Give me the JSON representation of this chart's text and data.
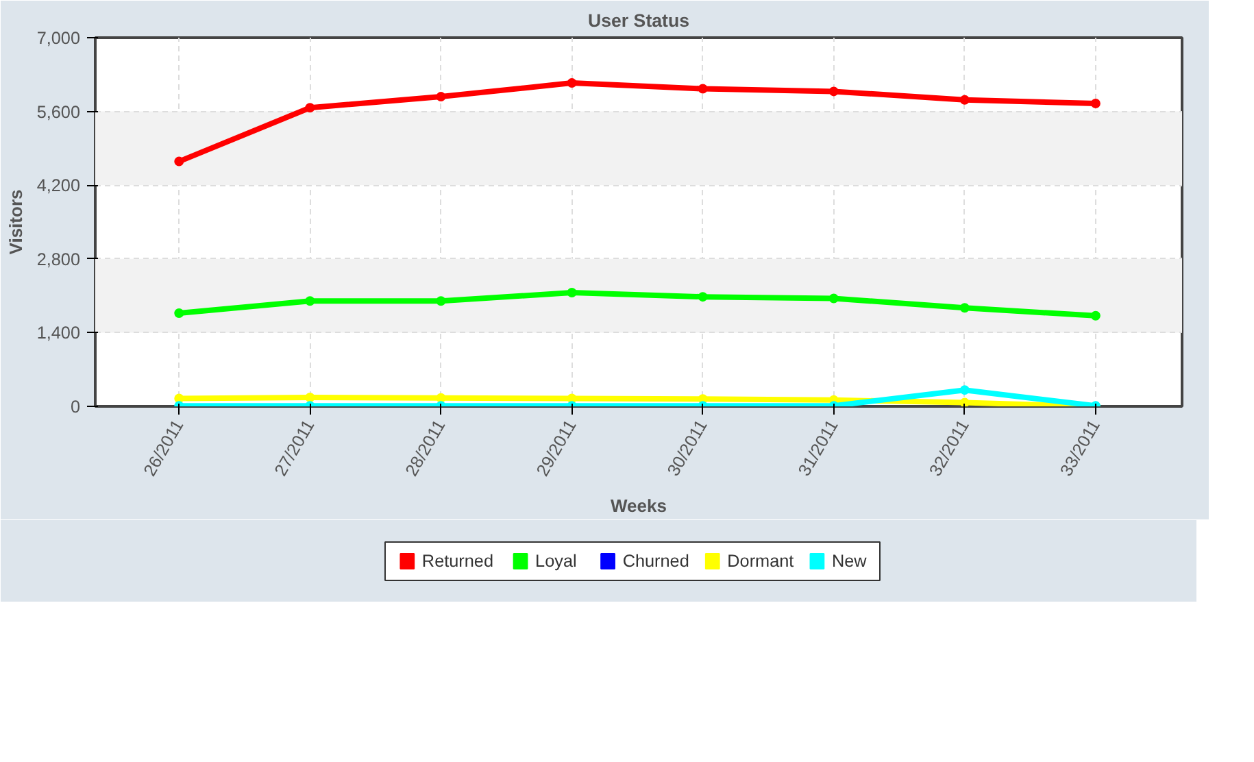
{
  "chart_data": {
    "type": "line",
    "title": "User Status",
    "xlabel": "Weeks",
    "ylabel": "Visitors",
    "categories": [
      "26/2011",
      "27/2011",
      "28/2011",
      "29/2011",
      "30/2011",
      "31/2011",
      "32/2011",
      "33/2011"
    ],
    "series": [
      {
        "name": "Returned",
        "color": "#ff0000",
        "values": [
          4650,
          5670,
          5880,
          6140,
          6030,
          5980,
          5820,
          5750
        ]
      },
      {
        "name": "Loyal",
        "color": "#00ff00",
        "values": [
          1770,
          2000,
          2000,
          2160,
          2080,
          2050,
          1870,
          1720
        ]
      },
      {
        "name": "Churned",
        "color": "#0000ff",
        "values": [
          null,
          null,
          null,
          null,
          null,
          null,
          null,
          null
        ]
      },
      {
        "name": "Dormant",
        "color": "#ffff00",
        "values": [
          150,
          170,
          160,
          150,
          140,
          120,
          70,
          0
        ]
      },
      {
        "name": "New",
        "color": "#00ffff",
        "values": [
          10,
          10,
          10,
          10,
          10,
          10,
          310,
          10
        ]
      }
    ],
    "ylim": [
      0,
      7000
    ],
    "yticks": [
      {
        "value": 0,
        "label": "0"
      },
      {
        "value": 1400,
        "label": "1,400"
      },
      {
        "value": 2800,
        "label": "2,800"
      },
      {
        "value": 4200,
        "label": "4,200"
      },
      {
        "value": 5600,
        "label": "5,600"
      },
      {
        "value": 7000,
        "label": "7,000"
      }
    ],
    "grid": true,
    "legend": "bottom",
    "marker": "circle",
    "line_style": "solid"
  }
}
